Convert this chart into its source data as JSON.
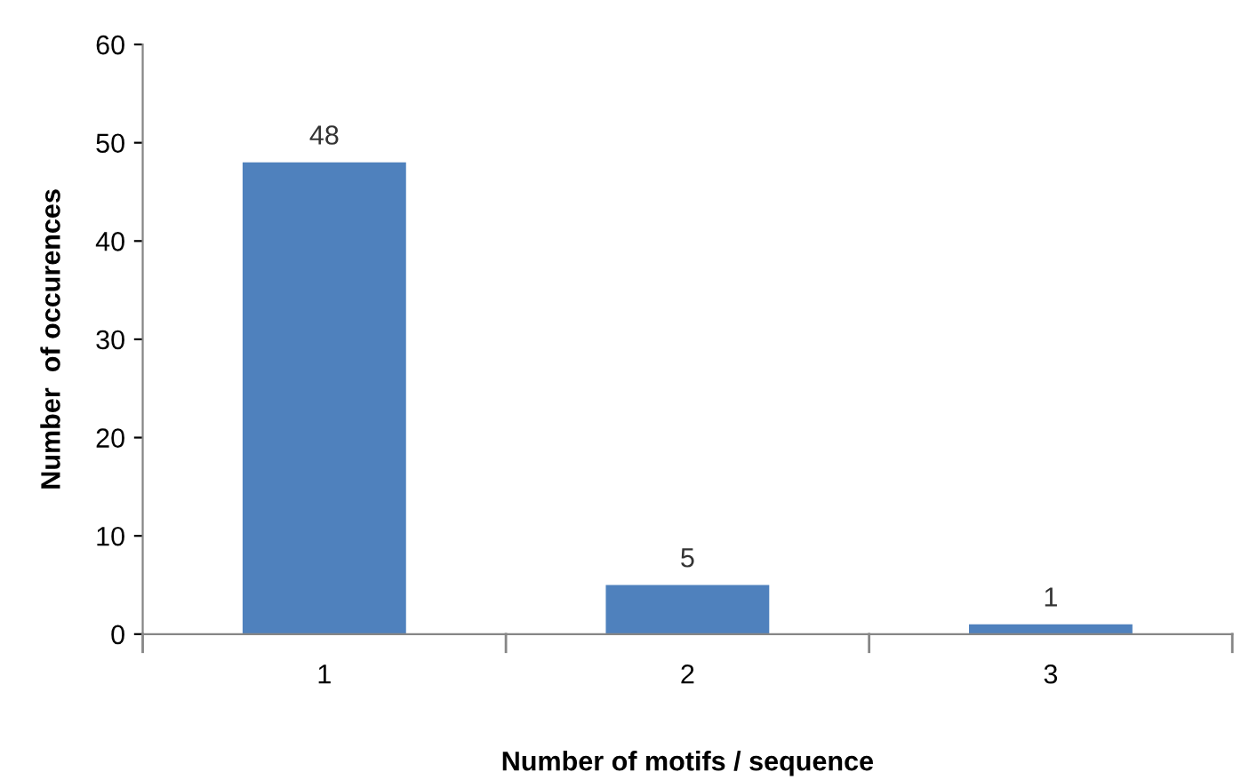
{
  "chart_data": {
    "type": "bar",
    "xlabel": "Number of motifs / sequence",
    "ylabel": "Number  of occurences",
    "categories": [
      "1",
      "2",
      "3"
    ],
    "values": [
      48,
      5,
      1
    ],
    "color": "#4f81bd",
    "ylim": [
      0,
      60
    ],
    "yticks": [
      0,
      10,
      20,
      30,
      40,
      50,
      60
    ],
    "grid": false,
    "data_labels": true
  }
}
